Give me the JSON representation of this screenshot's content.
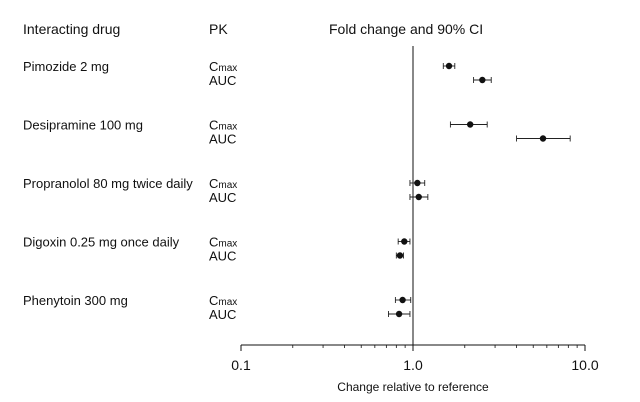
{
  "headers": {
    "drug": "Interacting drug",
    "pk": "PK",
    "fold": "Fold change and 90% CI"
  },
  "chart_data": {
    "type": "forest",
    "scale": "log",
    "xlim": [
      0.1,
      10.0
    ],
    "reference_line": 1.0,
    "xticks": [
      {
        "value": 0.1,
        "label": "0.1"
      },
      {
        "value": 1.0,
        "label": "1.0"
      },
      {
        "value": 10.0,
        "label": "10.0"
      }
    ],
    "xlabel": "Change relative to reference",
    "parameter_labels": {
      "cmax": {
        "main": "C",
        "sub": "max"
      },
      "auc": {
        "main": "AUC",
        "sub": ""
      }
    },
    "groups": [
      {
        "drug": "Pimozide 2 mg",
        "rows": [
          {
            "param": "cmax",
            "estimate": 1.62,
            "ci": [
              1.5,
              1.75
            ]
          },
          {
            "param": "auc",
            "estimate": 2.53,
            "ci": [
              2.25,
              2.85
            ]
          }
        ]
      },
      {
        "drug": "Desipramine 100 mg",
        "rows": [
          {
            "param": "cmax",
            "estimate": 2.15,
            "ci": [
              1.65,
              2.7
            ]
          },
          {
            "param": "auc",
            "estimate": 5.7,
            "ci": [
              4.0,
              8.2
            ]
          }
        ]
      },
      {
        "drug": "Propranolol 80 mg twice daily",
        "rows": [
          {
            "param": "cmax",
            "estimate": 1.06,
            "ci": [
              0.96,
              1.17
            ]
          },
          {
            "param": "auc",
            "estimate": 1.08,
            "ci": [
              0.96,
              1.22
            ]
          }
        ]
      },
      {
        "drug": "Digoxin 0.25 mg once daily",
        "rows": [
          {
            "param": "cmax",
            "estimate": 0.89,
            "ci": [
              0.82,
              0.96
            ]
          },
          {
            "param": "auc",
            "estimate": 0.84,
            "ci": [
              0.8,
              0.88
            ]
          }
        ]
      },
      {
        "drug": "Phenytoin 300 mg",
        "rows": [
          {
            "param": "cmax",
            "estimate": 0.87,
            "ci": [
              0.79,
              0.97
            ]
          },
          {
            "param": "auc",
            "estimate": 0.83,
            "ci": [
              0.72,
              0.96
            ]
          }
        ]
      }
    ]
  }
}
